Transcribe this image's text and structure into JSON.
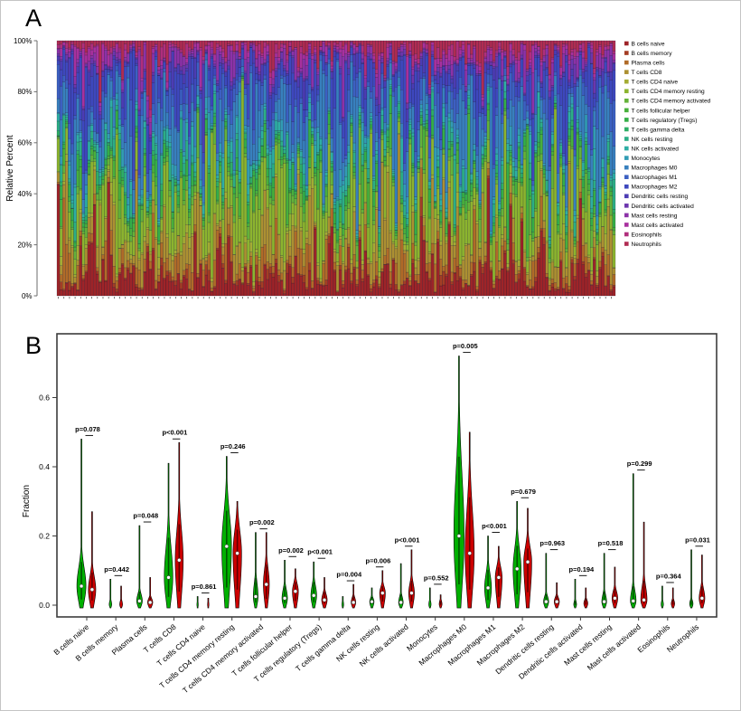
{
  "figure": {
    "panel_a_label": "A",
    "panel_b_label": "B"
  },
  "chart_data": [
    {
      "panel": "A",
      "type": "bar",
      "stacked": true,
      "title": "",
      "xlabel": "",
      "ylabel": "Relative Percent",
      "ytick_labels": [
        "0%",
        "20%",
        "40%",
        "60%",
        "80%",
        "100%"
      ],
      "ylim": [
        0,
        1
      ],
      "grid": false,
      "legend_position": "right",
      "n_samples": 200,
      "categories": [
        "B cells naive",
        "B cells memory",
        "Plasma cells",
        "T cells CD8",
        "T cells CD4 naive",
        "T cells CD4 memory resting",
        "T cells CD4 memory activated",
        "T cells follicular helper",
        "T cells regulatory (Tregs)",
        "T cells gamma delta",
        "NK cells resting",
        "NK cells activated",
        "Monocytes",
        "Macrophages M0",
        "Macrophages M1",
        "Macrophages M2",
        "Dendritic cells resting",
        "Dendritic cells activated",
        "Mast cells resting",
        "Mast cells activated",
        "Eosinophils",
        "Neutrophils"
      ],
      "colors": [
        "#9E2428",
        "#A43D24",
        "#B06B28",
        "#AC9032",
        "#A4AC34",
        "#8CB42F",
        "#64B23A",
        "#48B03C",
        "#34AE48",
        "#2EAE66",
        "#2CAE86",
        "#2EAEA4",
        "#329CB4",
        "#3880BE",
        "#3C60C2",
        "#3E48BE",
        "#4C3CB4",
        "#6C36AE",
        "#8C32A8",
        "#A8309E",
        "#B02E7C",
        "#B02C52"
      ],
      "mean_fractions": [
        0.09,
        0.012,
        0.045,
        0.1,
        0.012,
        0.155,
        0.03,
        0.032,
        0.03,
        0.012,
        0.035,
        0.028,
        0.02,
        0.145,
        0.06,
        0.095,
        0.022,
        0.012,
        0.03,
        0.018,
        0.012,
        0.035
      ]
    },
    {
      "panel": "B",
      "type": "violin",
      "title": "",
      "xlabel": "",
      "ylabel": "Fraction",
      "yticks": [
        0.0,
        0.2,
        0.4,
        0.6
      ],
      "ytick_labels": [
        "0.0",
        "0.2",
        "0.4",
        "0.6"
      ],
      "ylim": [
        -0.03,
        0.78
      ],
      "grid": false,
      "series_colors": {
        "green": "#00B000",
        "red": "#CC0000"
      },
      "groups": [
        {
          "name": "B cells naive",
          "p_label": "p=0.078",
          "green": {
            "median": 0.055,
            "body_top": 0.16,
            "whisker_max": 0.48,
            "rel_width": 0.8
          },
          "red": {
            "median": 0.045,
            "body_top": 0.12,
            "whisker_max": 0.27,
            "rel_width": 0.65
          }
        },
        {
          "name": "B cells memory",
          "p_label": "p=0.442",
          "green": {
            "median": 0.002,
            "body_top": 0.012,
            "whisker_max": 0.075,
            "rel_width": 0.22
          },
          "red": {
            "median": 0.002,
            "body_top": 0.012,
            "whisker_max": 0.055,
            "rel_width": 0.25
          }
        },
        {
          "name": "Plasma cells",
          "p_label": "p=0.048",
          "green": {
            "median": 0.012,
            "body_top": 0.05,
            "whisker_max": 0.23,
            "rel_width": 0.5
          },
          "red": {
            "median": 0.008,
            "body_top": 0.03,
            "whisker_max": 0.08,
            "rel_width": 0.45
          }
        },
        {
          "name": "T cells CD8",
          "p_label": "p<0.001",
          "green": {
            "median": 0.08,
            "body_top": 0.25,
            "whisker_max": 0.41,
            "rel_width": 0.75
          },
          "red": {
            "median": 0.13,
            "body_top": 0.3,
            "whisker_max": 0.47,
            "rel_width": 0.7
          }
        },
        {
          "name": "T cells CD4 naive",
          "p_label": "p=0.861",
          "green": {
            "median": 0.001,
            "body_top": 0.006,
            "whisker_max": 0.025,
            "rel_width": 0.12
          },
          "red": {
            "median": 0.001,
            "body_top": 0.006,
            "whisker_max": 0.02,
            "rel_width": 0.12
          }
        },
        {
          "name": "T cells CD4 memory resting",
          "p_label": "p=0.246",
          "green": {
            "median": 0.17,
            "body_top": 0.35,
            "whisker_max": 0.43,
            "rel_width": 0.85
          },
          "red": {
            "median": 0.15,
            "body_top": 0.28,
            "whisker_max": 0.3,
            "rel_width": 0.75
          }
        },
        {
          "name": "T cells CD4 memory activated",
          "p_label": "p=0.002",
          "green": {
            "median": 0.025,
            "body_top": 0.1,
            "whisker_max": 0.21,
            "rel_width": 0.42
          },
          "red": {
            "median": 0.06,
            "body_top": 0.15,
            "whisker_max": 0.21,
            "rel_width": 0.52
          }
        },
        {
          "name": "T cells follicular helper",
          "p_label": "p=0.002",
          "green": {
            "median": 0.02,
            "body_top": 0.07,
            "whisker_max": 0.13,
            "rel_width": 0.48
          },
          "red": {
            "median": 0.04,
            "body_top": 0.085,
            "whisker_max": 0.105,
            "rel_width": 0.52
          }
        },
        {
          "name": "T cells regulatory (Tregs)",
          "p_label": "p<0.001",
          "green": {
            "median": 0.028,
            "body_top": 0.085,
            "whisker_max": 0.125,
            "rel_width": 0.5
          },
          "red": {
            "median": 0.015,
            "body_top": 0.05,
            "whisker_max": 0.08,
            "rel_width": 0.48
          }
        },
        {
          "name": "T cells gamma delta",
          "p_label": "p=0.004",
          "green": {
            "median": 0.001,
            "body_top": 0.008,
            "whisker_max": 0.025,
            "rel_width": 0.15
          },
          "red": {
            "median": 0.008,
            "body_top": 0.035,
            "whisker_max": 0.06,
            "rel_width": 0.4
          }
        },
        {
          "name": "NK cells resting",
          "p_label": "p=0.006",
          "green": {
            "median": 0.01,
            "body_top": 0.03,
            "whisker_max": 0.05,
            "rel_width": 0.38
          },
          "red": {
            "median": 0.035,
            "body_top": 0.07,
            "whisker_max": 0.1,
            "rel_width": 0.5
          }
        },
        {
          "name": "NK cells activated",
          "p_label": "p<0.001",
          "green": {
            "median": 0.008,
            "body_top": 0.04,
            "whisker_max": 0.12,
            "rel_width": 0.4
          },
          "red": {
            "median": 0.035,
            "body_top": 0.09,
            "whisker_max": 0.16,
            "rel_width": 0.5
          }
        },
        {
          "name": "Monocytes",
          "p_label": "p=0.552",
          "green": {
            "median": 0.002,
            "body_top": 0.012,
            "whisker_max": 0.05,
            "rel_width": 0.2
          },
          "red": {
            "median": 0.003,
            "body_top": 0.015,
            "whisker_max": 0.03,
            "rel_width": 0.25
          }
        },
        {
          "name": "Macrophages M0",
          "p_label": "p=0.005",
          "green": {
            "median": 0.2,
            "body_top": 0.55,
            "whisker_max": 0.72,
            "rel_width": 0.9
          },
          "red": {
            "median": 0.15,
            "body_top": 0.4,
            "whisker_max": 0.5,
            "rel_width": 0.8
          }
        },
        {
          "name": "Macrophages M1",
          "p_label": "p<0.001",
          "green": {
            "median": 0.05,
            "body_top": 0.13,
            "whisker_max": 0.2,
            "rel_width": 0.6
          },
          "red": {
            "median": 0.08,
            "body_top": 0.14,
            "whisker_max": 0.17,
            "rel_width": 0.6
          }
        },
        {
          "name": "Macrophages M2",
          "p_label": "p=0.679",
          "green": {
            "median": 0.105,
            "body_top": 0.22,
            "whisker_max": 0.3,
            "rel_width": 0.7
          },
          "red": {
            "median": 0.125,
            "body_top": 0.21,
            "whisker_max": 0.28,
            "rel_width": 0.7
          }
        },
        {
          "name": "Dendritic cells resting",
          "p_label": "p=0.963",
          "green": {
            "median": 0.01,
            "body_top": 0.04,
            "whisker_max": 0.15,
            "rel_width": 0.45
          },
          "red": {
            "median": 0.01,
            "body_top": 0.035,
            "whisker_max": 0.065,
            "rel_width": 0.45
          }
        },
        {
          "name": "Dendritic cells activated",
          "p_label": "p=0.194",
          "green": {
            "median": 0.002,
            "body_top": 0.015,
            "whisker_max": 0.075,
            "rel_width": 0.25
          },
          "red": {
            "median": 0.005,
            "body_top": 0.025,
            "whisker_max": 0.05,
            "rel_width": 0.35
          }
        },
        {
          "name": "Mast cells resting",
          "p_label": "p=0.518",
          "green": {
            "median": 0.01,
            "body_top": 0.05,
            "whisker_max": 0.15,
            "rel_width": 0.42
          },
          "red": {
            "median": 0.02,
            "body_top": 0.06,
            "whisker_max": 0.11,
            "rel_width": 0.5
          }
        },
        {
          "name": "Mast cells activated",
          "p_label": "p=0.299",
          "green": {
            "median": 0.012,
            "body_top": 0.07,
            "whisker_max": 0.38,
            "rel_width": 0.5
          },
          "red": {
            "median": 0.015,
            "body_top": 0.09,
            "whisker_max": 0.24,
            "rel_width": 0.55
          }
        },
        {
          "name": "Eosinophils",
          "p_label": "p=0.364",
          "green": {
            "median": 0.002,
            "body_top": 0.01,
            "whisker_max": 0.055,
            "rel_width": 0.2
          },
          "red": {
            "median": 0.004,
            "body_top": 0.02,
            "whisker_max": 0.05,
            "rel_width": 0.3
          }
        },
        {
          "name": "Neutrophils",
          "p_label": "p=0.031",
          "green": {
            "median": 0.004,
            "body_top": 0.02,
            "whisker_max": 0.16,
            "rel_width": 0.3
          },
          "red": {
            "median": 0.02,
            "body_top": 0.07,
            "whisker_max": 0.145,
            "rel_width": 0.5
          }
        }
      ]
    }
  ]
}
